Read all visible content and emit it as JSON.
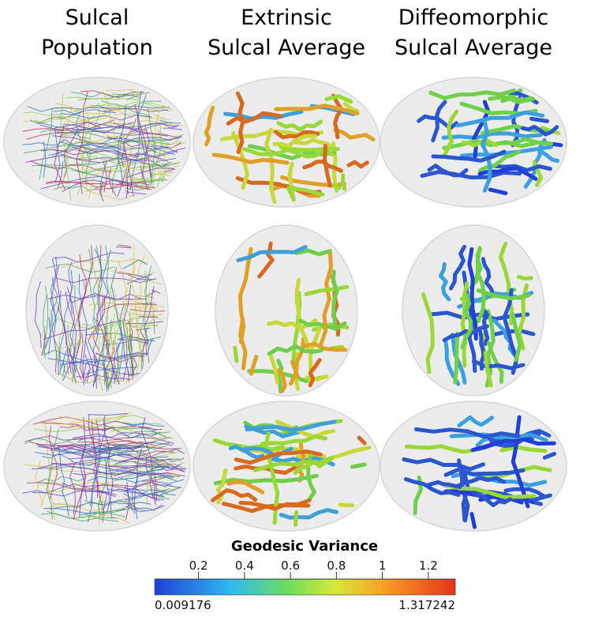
{
  "columns": [
    {
      "lines": [
        "Sulcal",
        "Population"
      ]
    },
    {
      "lines": [
        "Extrinsic",
        "Sulcal Average"
      ]
    },
    {
      "lines": [
        "Diffeomorphic",
        "Sulcal Average"
      ]
    }
  ],
  "colorbar": {
    "title": "Geodesic Variance",
    "range": [
      0.009176,
      1.317242
    ],
    "ticks": [
      0.2,
      0.4,
      0.6,
      0.8,
      1,
      1.2
    ]
  }
}
